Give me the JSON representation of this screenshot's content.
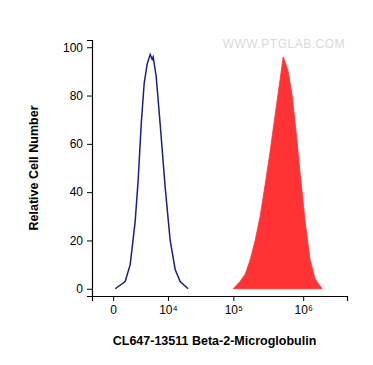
{
  "chart_data": {
    "type": "line",
    "x_label": "CL647-13511 Beta-2-Microglobulin",
    "y_label": "Relative Cell Number",
    "watermark": "WWW.PTGLAB.COM",
    "log": "x",
    "grid": false,
    "xlim": [
      -2000,
      4200000
    ],
    "xticks": [
      0,
      {
        "value": 10000,
        "label": "10⁴"
      },
      {
        "value": 100000,
        "label": "10⁵"
      },
      {
        "value": 1000000,
        "label": "10⁶"
      }
    ],
    "ylim": [
      -3,
      103
    ],
    "yticks": [
      0,
      20,
      40,
      60,
      80,
      100
    ],
    "series": [
      {
        "type": "line",
        "color": "#1c1c8a",
        "x": [
          136,
          960,
          1490,
          2110,
          2530,
          3000,
          3510,
          4080,
          4710,
          5160,
          5400,
          6160,
          7310,
          8960,
          10910,
          13200,
          15900,
          21200
        ],
        "values": [
          0,
          3,
          10,
          28,
          45,
          68,
          85,
          93,
          97,
          95,
          96,
          88,
          68,
          42,
          20,
          8,
          3,
          0
        ]
      },
      {
        "type": "area",
        "color": "#ff3333",
        "x": [
          99400,
          125000,
          148000,
          175000,
          206000,
          243000,
          286000,
          338000,
          398000,
          470000,
          518000,
          552000,
          610000,
          696000,
          792000,
          904000,
          1064000,
          1254000,
          1478000,
          1860000
        ],
        "values": [
          0,
          3,
          6,
          12,
          20,
          30,
          43,
          57,
          72,
          87,
          96,
          94,
          90,
          80,
          65,
          48,
          28,
          12,
          4,
          0
        ]
      }
    ]
  }
}
